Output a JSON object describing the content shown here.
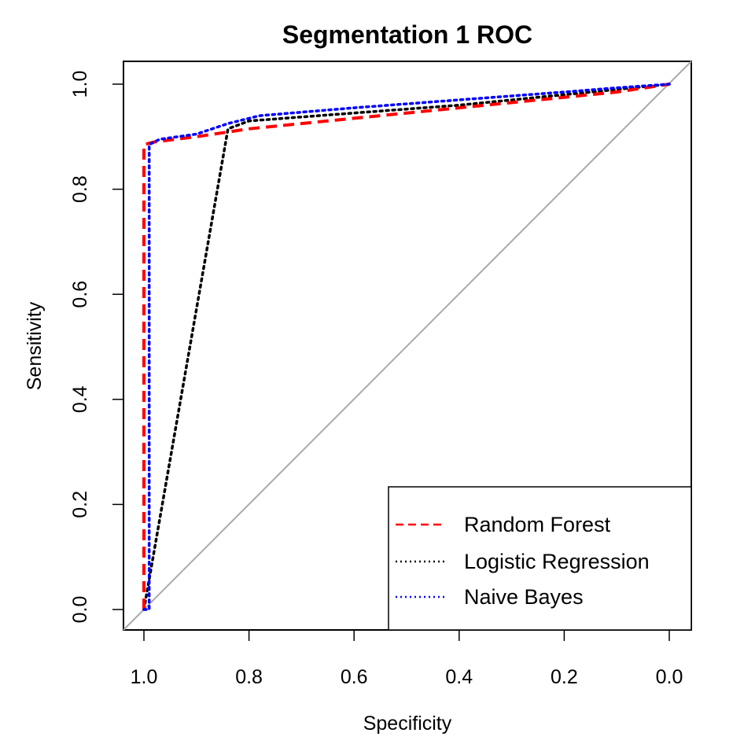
{
  "chart_data": {
    "type": "line",
    "title": "Segmentation 1 ROC",
    "xlabel": "Specificity",
    "ylabel": "Sensitivity",
    "xlim": [
      1.0,
      0.0
    ],
    "ylim": [
      0.0,
      1.0
    ],
    "x_reversed": true,
    "xticks": [
      "1.0",
      "0.8",
      "0.6",
      "0.4",
      "0.2",
      "0.0"
    ],
    "yticks": [
      "0.0",
      "0.2",
      "0.4",
      "0.6",
      "0.8",
      "1.0"
    ],
    "grid": false,
    "legend_position": "bottom-right",
    "reference_line": {
      "from": [
        1.0,
        0.0
      ],
      "to": [
        0.0,
        1.0
      ],
      "color": "#aaaaaa"
    },
    "series": [
      {
        "name": "Random Forest",
        "color": "#ff0000",
        "dash": "dashed",
        "points": [
          [
            1.0,
            0.0
          ],
          [
            1.0,
            0.885
          ],
          [
            0.98,
            0.89
          ],
          [
            0.9,
            0.9
          ],
          [
            0.8,
            0.915
          ],
          [
            0.6,
            0.935
          ],
          [
            0.4,
            0.955
          ],
          [
            0.2,
            0.975
          ],
          [
            0.1,
            0.985
          ],
          [
            0.0,
            1.0
          ]
        ]
      },
      {
        "name": "Logistic Regression",
        "color": "#000000",
        "dash": "dotted",
        "points": [
          [
            1.0,
            0.0
          ],
          [
            0.84,
            0.915
          ],
          [
            0.8,
            0.93
          ],
          [
            0.6,
            0.945
          ],
          [
            0.4,
            0.96
          ],
          [
            0.2,
            0.98
          ],
          [
            0.1,
            0.99
          ],
          [
            0.0,
            1.0
          ]
        ]
      },
      {
        "name": "Naive Bayes",
        "color": "#0000ff",
        "dash": "dotted",
        "points": [
          [
            1.0,
            0.0
          ],
          [
            0.99,
            0.0
          ],
          [
            0.99,
            0.885
          ],
          [
            0.97,
            0.895
          ],
          [
            0.9,
            0.905
          ],
          [
            0.84,
            0.925
          ],
          [
            0.78,
            0.94
          ],
          [
            0.6,
            0.955
          ],
          [
            0.4,
            0.97
          ],
          [
            0.2,
            0.985
          ],
          [
            0.1,
            0.993
          ],
          [
            0.0,
            1.0
          ]
        ]
      }
    ]
  }
}
